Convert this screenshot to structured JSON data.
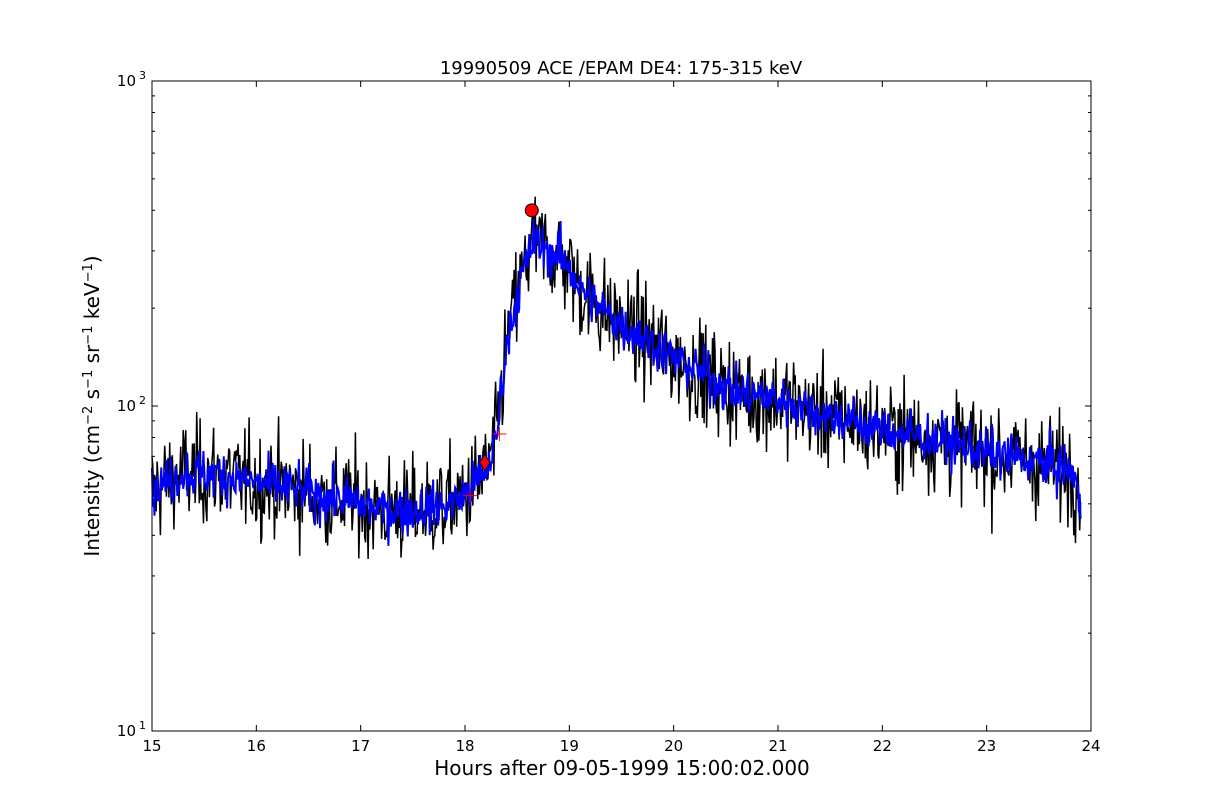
{
  "chart_data": {
    "type": "line",
    "title": "19990509 ACE /EPAM DE4: 175-315 keV",
    "xlabel": "Hours after 09-05-1999 15:00:02.000",
    "ylabel": {
      "parts": [
        "Intensity (cm",
        "−2",
        " s",
        "−1",
        " sr",
        "−1",
        " keV",
        "−1",
        ")"
      ]
    },
    "x_scale": "linear",
    "y_scale": "log",
    "xlim": [
      15,
      24
    ],
    "ylim": [
      10,
      1000
    ],
    "x_ticks": [
      15,
      16,
      17,
      18,
      19,
      20,
      21,
      22,
      23,
      24
    ],
    "x_tick_labels": [
      "15",
      "16",
      "17",
      "18",
      "19",
      "20",
      "21",
      "22",
      "23",
      "24"
    ],
    "y_ticks": [
      10,
      100,
      1000
    ],
    "y_tick_labels": [
      {
        "base": "10",
        "exp": "1"
      },
      {
        "base": "10",
        "exp": "2"
      },
      {
        "base": "10",
        "exp": "3"
      }
    ],
    "grid": false,
    "series": [
      {
        "name": "",
        "color": "#000000",
        "noise": 0.085,
        "points": [
          [
            15.0,
            55
          ],
          [
            15.3,
            62
          ],
          [
            15.6,
            62
          ],
          [
            16.0,
            58
          ],
          [
            16.3,
            56
          ],
          [
            16.6,
            53
          ],
          [
            16.9,
            51
          ],
          [
            17.2,
            48
          ],
          [
            17.5,
            48
          ],
          [
            17.8,
            49
          ],
          [
            18.0,
            53
          ],
          [
            18.1,
            58
          ],
          [
            18.2,
            63
          ],
          [
            18.3,
            78
          ],
          [
            18.35,
            115
          ],
          [
            18.42,
            170
          ],
          [
            18.5,
            220
          ],
          [
            18.58,
            270
          ],
          [
            18.65,
            320
          ],
          [
            18.75,
            305
          ],
          [
            18.9,
            290
          ],
          [
            19.0,
            270
          ],
          [
            19.1,
            230
          ],
          [
            19.3,
            200
          ],
          [
            19.5,
            178
          ],
          [
            19.75,
            160
          ],
          [
            20.0,
            140
          ],
          [
            20.3,
            125
          ],
          [
            20.6,
            110
          ],
          [
            21.0,
            105
          ],
          [
            21.4,
            95
          ],
          [
            21.8,
            88
          ],
          [
            22.2,
            82
          ],
          [
            22.6,
            78
          ],
          [
            23.0,
            72
          ],
          [
            23.4,
            68
          ],
          [
            23.7,
            65
          ],
          [
            23.85,
            62
          ],
          [
            23.9,
            56
          ]
        ]
      },
      {
        "name": "",
        "color": "#0000ff",
        "noise": 0.04,
        "points": [
          [
            15.0,
            55
          ],
          [
            15.3,
            62
          ],
          [
            15.6,
            62
          ],
          [
            16.0,
            58
          ],
          [
            16.3,
            56
          ],
          [
            16.6,
            53
          ],
          [
            16.9,
            51
          ],
          [
            17.2,
            48
          ],
          [
            17.5,
            48
          ],
          [
            17.8,
            49
          ],
          [
            18.0,
            53
          ],
          [
            18.1,
            58
          ],
          [
            18.2,
            63
          ],
          [
            18.3,
            78
          ],
          [
            18.35,
            115
          ],
          [
            18.42,
            170
          ],
          [
            18.5,
            220
          ],
          [
            18.58,
            270
          ],
          [
            18.65,
            320
          ],
          [
            18.75,
            305
          ],
          [
            18.9,
            290
          ],
          [
            19.0,
            270
          ],
          [
            19.1,
            230
          ],
          [
            19.3,
            200
          ],
          [
            19.5,
            178
          ],
          [
            19.75,
            160
          ],
          [
            20.0,
            140
          ],
          [
            20.3,
            125
          ],
          [
            20.6,
            110
          ],
          [
            21.0,
            105
          ],
          [
            21.4,
            95
          ],
          [
            21.8,
            88
          ],
          [
            22.2,
            82
          ],
          [
            22.6,
            78
          ],
          [
            23.0,
            72
          ],
          [
            23.4,
            68
          ],
          [
            23.7,
            65
          ],
          [
            23.85,
            62
          ],
          [
            23.9,
            45
          ]
        ]
      }
    ],
    "markers": [
      {
        "type": "circle",
        "x": 18.64,
        "y": 400,
        "color": "#ff0000"
      },
      {
        "type": "diamond",
        "x": 18.19,
        "y": 67,
        "color": "#ff0000"
      },
      {
        "type": "plus",
        "x": 18.33,
        "y": 82,
        "color": "#ff0000"
      },
      {
        "type": "plus",
        "x": 18.05,
        "y": 53,
        "color": "#ff0000"
      }
    ]
  }
}
